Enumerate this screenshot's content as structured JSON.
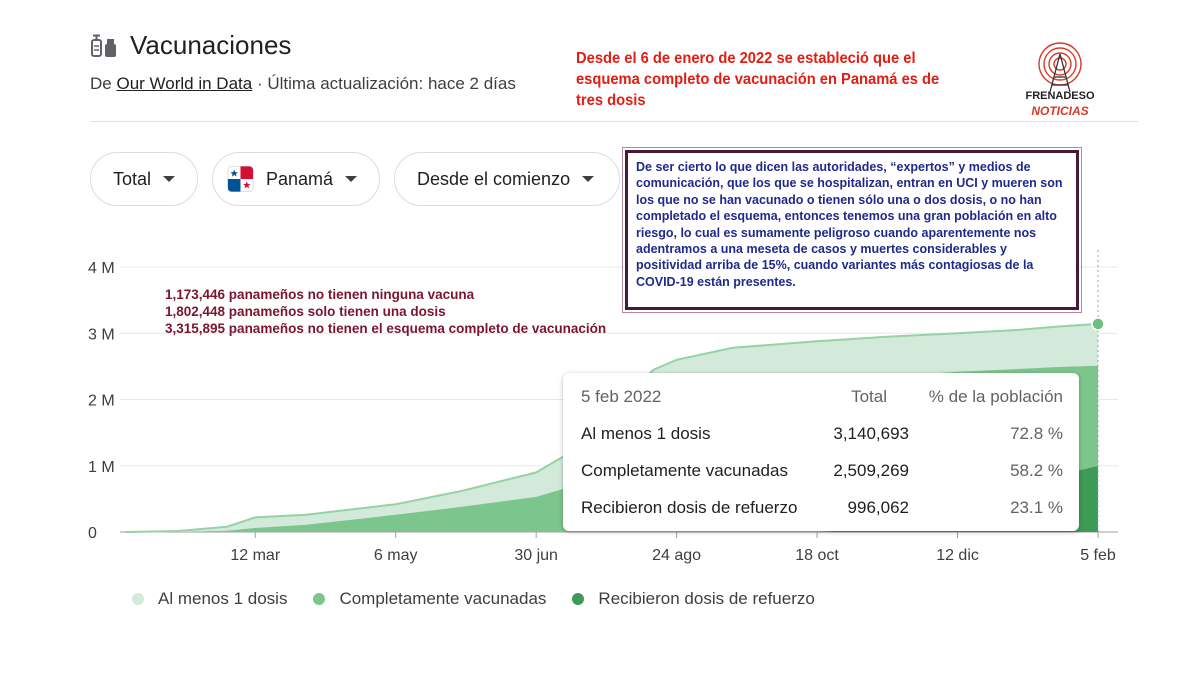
{
  "header": {
    "title": "Vacunaciones",
    "source_prefix": "De",
    "source_link": "Our World in Data",
    "source_suffix": "· Última actualización: hace 2 días"
  },
  "annotation_red": "Desde el 6 de enero de 2022 se estableció que el esquema completo de vacunación en Panamá es de tres dosis",
  "logo": {
    "text_top": "FRENADESO",
    "text_bottom": "NOTICIAS"
  },
  "filters": {
    "metric": "Total",
    "country": "Panamá",
    "period": "Desde el comienzo"
  },
  "annotation_box": "De ser cierto lo que dicen las autoridades, “expertos” y medios de comunicación, que los que se hospitalizan, entran en UCI y mueren son los que no se han vacunado o tienen sólo una o dos dosis, o no han completado el esquema, entonces tenemos una gran población en alto riesgo, lo cual es sumamente peligroso cuando aparentemente nos adentramos a una meseta de casos y muertes considerables y positividad arriba de 15%, cuando variantes más contagiosas de la COVID-19 están presentes.",
  "annotation_dark": [
    "1,173,446  panameños no tienen ninguna vacuna",
    "1,802,448 panameños solo tienen una dosis",
    "3,315,895 panameños no tienen el esquema completo de vacunación"
  ],
  "tooltip": {
    "date": "5 feb 2022",
    "col_total": "Total",
    "col_pct": "% de la población",
    "rows": [
      {
        "label": "Al menos 1 dosis",
        "total": "3,140,693",
        "pct": "72.8 %"
      },
      {
        "label": "Completamente vacunadas",
        "total": "2,509,269",
        "pct": "58.2 %"
      },
      {
        "label": "Recibieron dosis de refuerzo",
        "total": "996,062",
        "pct": "23.1 %"
      }
    ]
  },
  "colors": {
    "light": "#d3eadb",
    "medium": "#7cc58d",
    "dark": "#3d9b55",
    "line": "#95d2a4",
    "grid": "#e8e8e8"
  },
  "chart_data": {
    "type": "area",
    "y_ticks": [
      "0",
      "1 M",
      "2 M",
      "3 M",
      "4 M"
    ],
    "ylim": [
      0,
      4000000
    ],
    "x_ticks": [
      "12 mar",
      "6 may",
      "30 jun",
      "24 ago",
      "18 oct",
      "12 dic",
      "5 feb"
    ],
    "x": [
      "2021-01-20",
      "2021-02-10",
      "2021-03-01",
      "2021-03-12",
      "2021-04-01",
      "2021-05-06",
      "2021-06-01",
      "2021-06-30",
      "2021-07-20",
      "2021-08-05",
      "2021-08-15",
      "2021-08-24",
      "2021-09-15",
      "2021-10-18",
      "2021-11-15",
      "2021-12-12",
      "2022-01-05",
      "2022-01-20",
      "2022-02-05"
    ],
    "series": [
      {
        "name": "Al menos 1 dosis",
        "values": [
          0,
          15000,
          80000,
          220000,
          260000,
          420000,
          620000,
          900000,
          1350000,
          2100000,
          2450000,
          2600000,
          2780000,
          2880000,
          2950000,
          3000000,
          3050000,
          3100000,
          3140693
        ]
      },
      {
        "name": "Completamente vacunadas",
        "values": [
          0,
          0,
          20000,
          60000,
          110000,
          260000,
          380000,
          530000,
          760000,
          1050000,
          1250000,
          1450000,
          1850000,
          2200000,
          2350000,
          2420000,
          2460000,
          2490000,
          2509269
        ]
      },
      {
        "name": "Recibieron dosis de refuerzo",
        "values": [
          0,
          0,
          0,
          0,
          0,
          0,
          0,
          0,
          0,
          0,
          0,
          0,
          0,
          0,
          60000,
          300000,
          650000,
          850000,
          996062
        ]
      }
    ],
    "legend_position": "bottom",
    "grid": true
  }
}
